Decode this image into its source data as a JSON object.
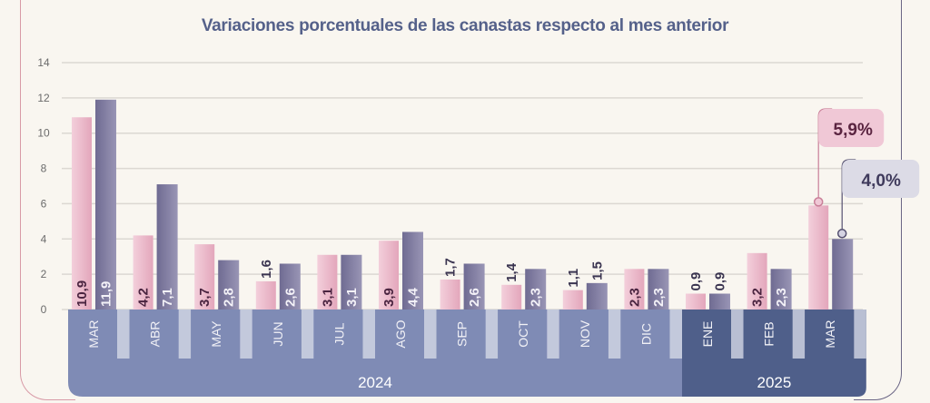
{
  "chart_data": {
    "type": "bar",
    "title": "Variaciones porcentuales de las canastas respecto al mes anterior",
    "categories": [
      "MAR",
      "ABR",
      "MAY",
      "JUN",
      "JUL",
      "AGO",
      "SEP",
      "OCT",
      "NOV",
      "DIC",
      "ENE",
      "FEB",
      "MAR"
    ],
    "years": [
      {
        "label": "2024",
        "from": 0,
        "to": 9
      },
      {
        "label": "2025",
        "from": 10,
        "to": 12
      }
    ],
    "series": [
      {
        "name": "Serie rosa",
        "color": "#e9b4c6",
        "values": [
          10.9,
          4.2,
          3.7,
          1.6,
          3.1,
          3.9,
          1.7,
          1.4,
          1.1,
          2.3,
          0.9,
          3.2,
          5.9
        ],
        "labels": [
          "10,9",
          "4,2",
          "3,7",
          "1,6",
          "3,1",
          "3,9",
          "1,7",
          "1,4",
          "1,1",
          "2,3",
          "0,9",
          "3,2",
          ""
        ]
      },
      {
        "name": "Serie violeta",
        "color": "#7d7a9e",
        "values": [
          11.9,
          7.1,
          2.8,
          2.6,
          3.1,
          4.4,
          2.6,
          2.3,
          1.5,
          2.3,
          0.9,
          2.3,
          4.0
        ],
        "labels": [
          "11,9",
          "7,1",
          "2,8",
          "2,6",
          "3,1",
          "4,4",
          "2,6",
          "2,3",
          "1,5",
          "2,3",
          "0,9",
          "2,3",
          ""
        ]
      }
    ],
    "callouts": [
      "5,9%",
      "4,0%"
    ],
    "yticks": [
      "0",
      "2",
      "4",
      "6",
      "8",
      "10",
      "12",
      "14"
    ],
    "ylim": [
      0,
      14
    ],
    "grid": true,
    "xlabel": "",
    "ylabel": ""
  }
}
